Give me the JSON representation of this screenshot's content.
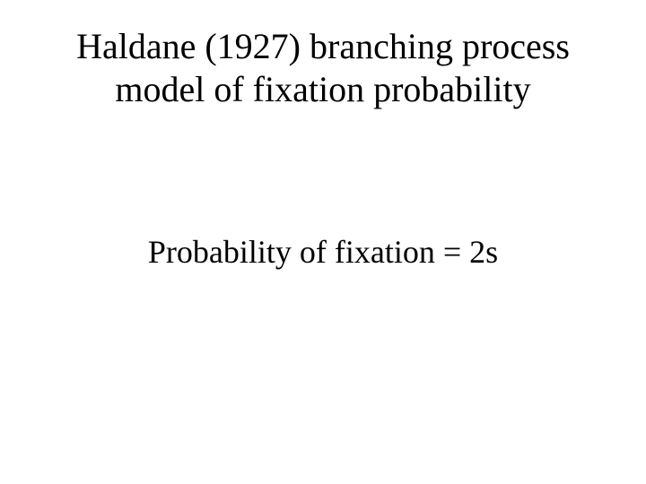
{
  "title": {
    "line1": "Haldane (1927) branching process",
    "line2": "model of fixation probability",
    "fontsize": 40,
    "color": "#000000"
  },
  "body": {
    "line1": "Probability of fixation = 2s",
    "fontsize": 36,
    "color": "#000000"
  },
  "background_color": "#ffffff"
}
